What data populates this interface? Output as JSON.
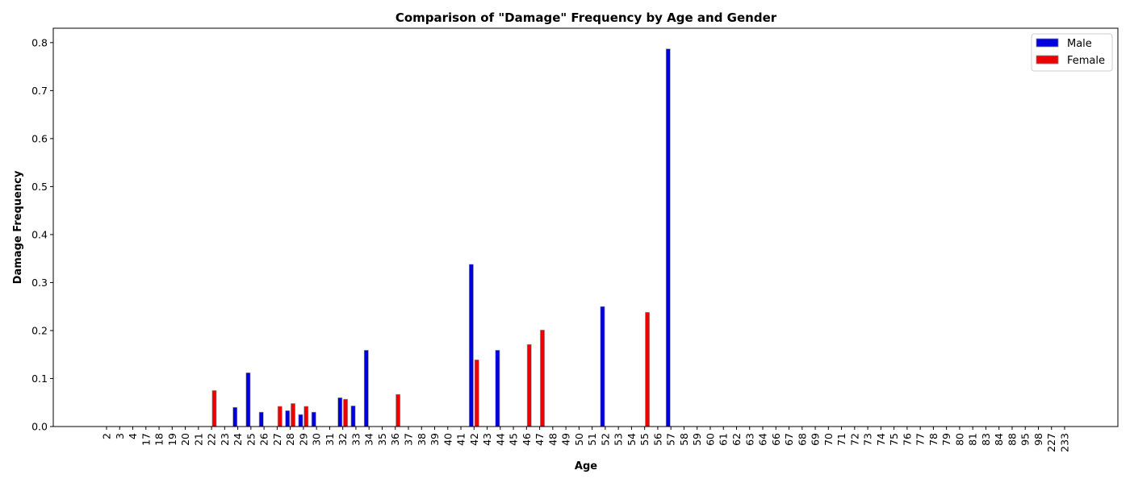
{
  "chart_data": {
    "type": "bar",
    "title": "Comparison of \"Damage\" Frequency by Age and Gender",
    "xlabel": "Age",
    "ylabel": "Damage Frequency",
    "ylim": [
      0,
      0.83
    ],
    "yticks": [
      "0.0",
      "0.1",
      "0.2",
      "0.3",
      "0.4",
      "0.5",
      "0.6",
      "0.7",
      "0.8"
    ],
    "grid": false,
    "legend_position": "top-right",
    "categories": [
      "2",
      "3",
      "4",
      "17",
      "18",
      "19",
      "20",
      "21",
      "22",
      "23",
      "24",
      "25",
      "26",
      "27",
      "28",
      "29",
      "30",
      "31",
      "32",
      "33",
      "34",
      "35",
      "36",
      "37",
      "38",
      "39",
      "40",
      "41",
      "42",
      "43",
      "44",
      "45",
      "46",
      "47",
      "48",
      "49",
      "50",
      "51",
      "52",
      "53",
      "54",
      "55",
      "56",
      "57",
      "58",
      "59",
      "60",
      "61",
      "62",
      "63",
      "64",
      "66",
      "67",
      "68",
      "69",
      "70",
      "71",
      "72",
      "73",
      "74",
      "75",
      "76",
      "77",
      "78",
      "79",
      "80",
      "81",
      "83",
      "84",
      "88",
      "95",
      "98",
      "227",
      "233"
    ],
    "series": [
      {
        "name": "Male",
        "color": "#0000dd",
        "values": [
          0,
          0,
          0,
          0,
          0,
          0,
          0,
          0,
          0,
          0,
          0.04,
          0.112,
          0.03,
          0,
          0.033,
          0.025,
          0.03,
          0,
          0.06,
          0.043,
          0.159,
          0,
          0,
          0,
          0,
          0,
          0,
          0,
          0.338,
          0,
          0.159,
          0,
          0,
          0,
          0,
          0,
          0,
          0,
          0.25,
          0,
          0,
          0,
          0,
          0.787,
          0,
          0,
          0,
          0,
          0,
          0,
          0,
          0,
          0,
          0,
          0,
          0,
          0,
          0,
          0,
          0,
          0,
          0,
          0,
          0,
          0,
          0,
          0,
          0,
          0,
          0,
          0,
          0,
          0,
          0
        ]
      },
      {
        "name": "Female",
        "color": "#ee0000",
        "values": [
          0,
          0,
          0,
          0,
          0,
          0,
          0,
          0,
          0.075,
          0,
          0,
          0,
          0,
          0.042,
          0.048,
          0.042,
          0,
          0,
          0.057,
          0,
          0,
          0,
          0.067,
          0,
          0,
          0,
          0,
          0,
          0.139,
          0,
          0,
          0,
          0.171,
          0.201,
          0,
          0,
          0,
          0,
          0,
          0,
          0,
          0.238,
          0,
          0,
          0,
          0,
          0,
          0,
          0,
          0,
          0,
          0,
          0,
          0,
          0,
          0,
          0,
          0,
          0,
          0,
          0,
          0,
          0,
          0,
          0,
          0,
          0,
          0,
          0,
          0,
          0,
          0,
          0,
          0
        ]
      }
    ]
  }
}
